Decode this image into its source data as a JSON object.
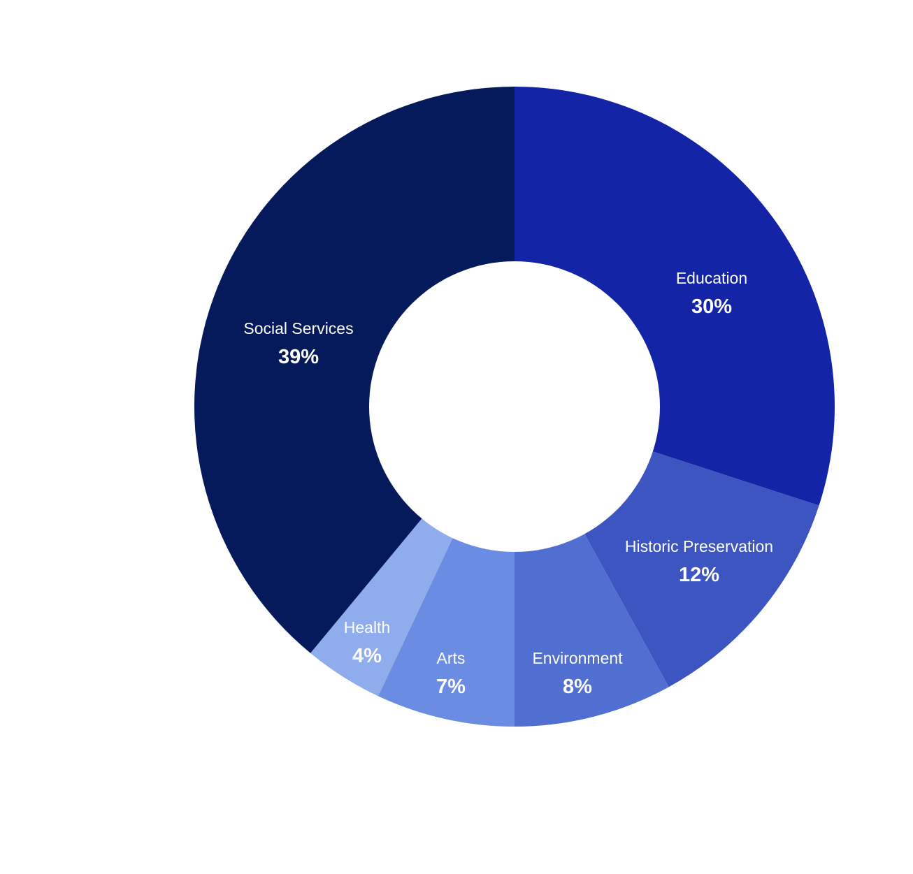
{
  "chart_data": {
    "type": "pie",
    "variant": "donut",
    "slices": [
      {
        "label": "Education",
        "value": 30,
        "value_label": "30%",
        "color": "#1324a6"
      },
      {
        "label": "Historic Preservation",
        "value": 12,
        "value_label": "12%",
        "color": "#3c55c0"
      },
      {
        "label": "Environment",
        "value": 8,
        "value_label": "8%",
        "color": "#516fd1"
      },
      {
        "label": "Arts",
        "value": 7,
        "value_label": "7%",
        "color": "#6a8ce2"
      },
      {
        "label": "Health",
        "value": 4,
        "value_label": "4%",
        "color": "#8facec"
      },
      {
        "label": "Social Services",
        "value": 39,
        "value_label": "39%",
        "color": "#051a5a"
      }
    ],
    "start_angle": "top, clockwise",
    "legend": "none"
  }
}
